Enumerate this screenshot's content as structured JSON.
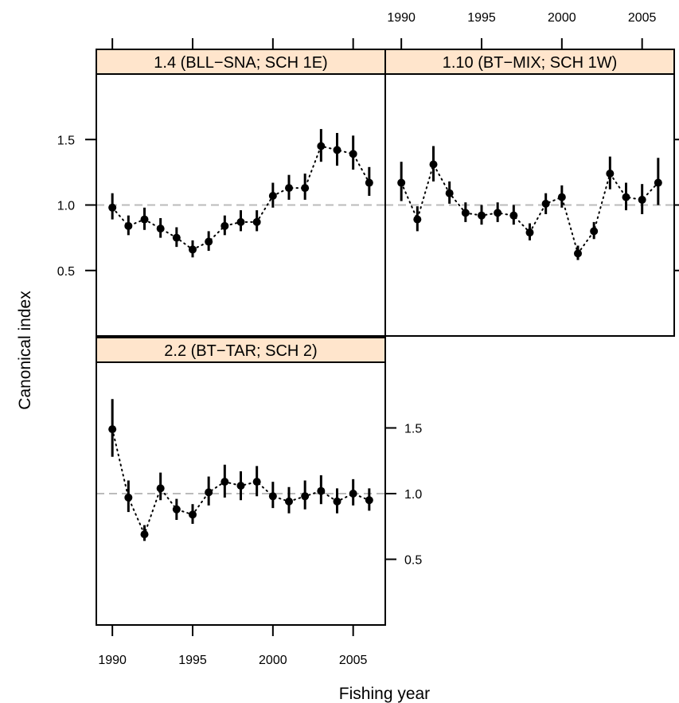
{
  "chart_data": {
    "type": "scatter",
    "xlabel": "Fishing year",
    "ylabel": "Canonical index",
    "xlim": [
      1989,
      2007
    ],
    "ylim": [
      0,
      2.0
    ],
    "x_ticks": [
      1990,
      1995,
      2000,
      2005
    ],
    "y_ticks": [
      0.5,
      1.0,
      1.5
    ],
    "reference_line": 1.0,
    "colors": {
      "points": "#000000",
      "strip_bg": "#ffe5cc",
      "reference": "#bbbbbb"
    },
    "panels": [
      {
        "name": "1.4 (BLL−SNA; SCH 1E)",
        "x": [
          1990,
          1991,
          1992,
          1993,
          1994,
          1995,
          1996,
          1997,
          1998,
          1999,
          2000,
          2001,
          2002,
          2003,
          2004,
          2005,
          2006
        ],
        "y": [
          0.98,
          0.84,
          0.89,
          0.82,
          0.75,
          0.66,
          0.72,
          0.84,
          0.87,
          0.87,
          1.07,
          1.13,
          1.13,
          1.45,
          1.42,
          1.39,
          1.17
        ],
        "lower": [
          0.89,
          0.77,
          0.81,
          0.75,
          0.68,
          0.6,
          0.65,
          0.77,
          0.8,
          0.8,
          0.98,
          1.04,
          1.04,
          1.33,
          1.3,
          1.27,
          1.07
        ],
        "upper": [
          1.09,
          0.92,
          0.98,
          0.9,
          0.83,
          0.73,
          0.8,
          0.92,
          0.96,
          0.96,
          1.17,
          1.23,
          1.24,
          1.58,
          1.55,
          1.53,
          1.29
        ]
      },
      {
        "name": "1.10 (BT−MIX; SCH 1W)",
        "x": [
          1990,
          1991,
          1992,
          1993,
          1994,
          1995,
          1996,
          1997,
          1998,
          1999,
          2000,
          2001,
          2002,
          2003,
          2004,
          2005,
          2006
        ],
        "y": [
          1.17,
          0.89,
          1.31,
          1.09,
          0.94,
          0.92,
          0.94,
          0.92,
          0.79,
          1.01,
          1.06,
          0.63,
          0.8,
          1.24,
          1.06,
          1.04,
          1.17
        ],
        "lower": [
          1.03,
          0.8,
          1.18,
          1.01,
          0.87,
          0.85,
          0.87,
          0.85,
          0.73,
          0.93,
          0.98,
          0.58,
          0.74,
          1.12,
          0.96,
          0.93,
          1.0
        ],
        "upper": [
          1.33,
          0.99,
          1.45,
          1.18,
          1.02,
          1.0,
          1.02,
          1.0,
          0.86,
          1.09,
          1.15,
          0.69,
          0.87,
          1.37,
          1.17,
          1.16,
          1.36
        ]
      },
      {
        "name": "2.2 (BT−TAR; SCH 2)",
        "x": [
          1990,
          1991,
          1992,
          1993,
          1994,
          1995,
          1996,
          1997,
          1998,
          1999,
          2000,
          2001,
          2002,
          2003,
          2004,
          2005,
          2006
        ],
        "y": [
          1.49,
          0.97,
          0.69,
          1.04,
          0.88,
          0.84,
          1.01,
          1.09,
          1.06,
          1.09,
          0.98,
          0.94,
          0.98,
          1.02,
          0.94,
          1.0,
          0.95
        ],
        "lower": [
          1.28,
          0.86,
          0.64,
          0.95,
          0.8,
          0.77,
          0.91,
          0.97,
          0.95,
          0.98,
          0.89,
          0.85,
          0.88,
          0.92,
          0.85,
          0.91,
          0.87
        ],
        "upper": [
          1.72,
          1.1,
          0.76,
          1.16,
          0.96,
          0.92,
          1.13,
          1.22,
          1.17,
          1.21,
          1.09,
          1.05,
          1.1,
          1.14,
          1.04,
          1.11,
          1.04
        ]
      }
    ]
  }
}
